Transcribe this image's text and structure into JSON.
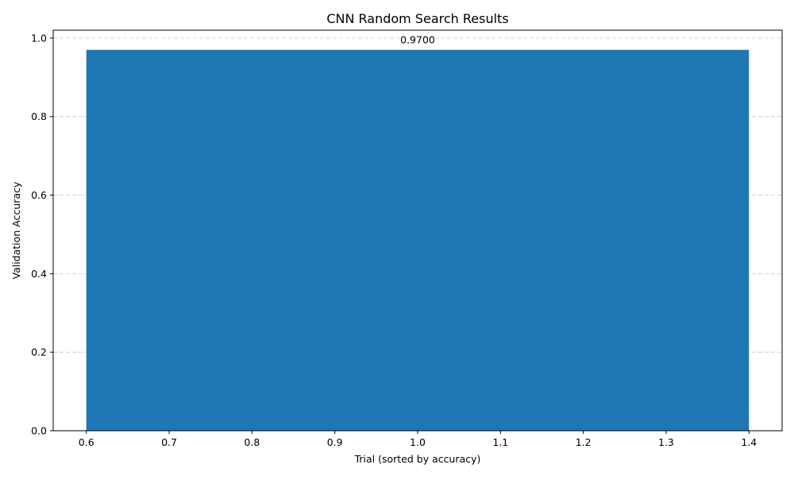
{
  "chart_data": {
    "type": "bar",
    "title": "CNN Random Search Results",
    "xlabel": "Trial (sorted by accuracy)",
    "ylabel": "Validation Accuracy",
    "bars": [
      {
        "x": 1.0,
        "width": 0.8,
        "value": 0.97,
        "label": "0.9700"
      }
    ],
    "xlim": [
      0.56,
      1.44
    ],
    "ylim": [
      0,
      1.02
    ],
    "xticks": [
      0.6,
      0.7,
      0.8,
      0.9,
      1.0,
      1.1,
      1.2,
      1.3,
      1.4
    ],
    "xtick_labels": [
      "0.6",
      "0.7",
      "0.8",
      "0.9",
      "1.0",
      "1.1",
      "1.2",
      "1.3",
      "1.4"
    ],
    "yticks": [
      0.0,
      0.2,
      0.4,
      0.6,
      0.8,
      1.0
    ],
    "ytick_labels": [
      "0.0",
      "0.2",
      "0.4",
      "0.6",
      "0.8",
      "1.0"
    ],
    "grid": {
      "axis": "y",
      "style": "dashed"
    },
    "colors": {
      "bar": "#1f77b4",
      "grid": "#c8c8c8",
      "axis": "#000000"
    }
  }
}
